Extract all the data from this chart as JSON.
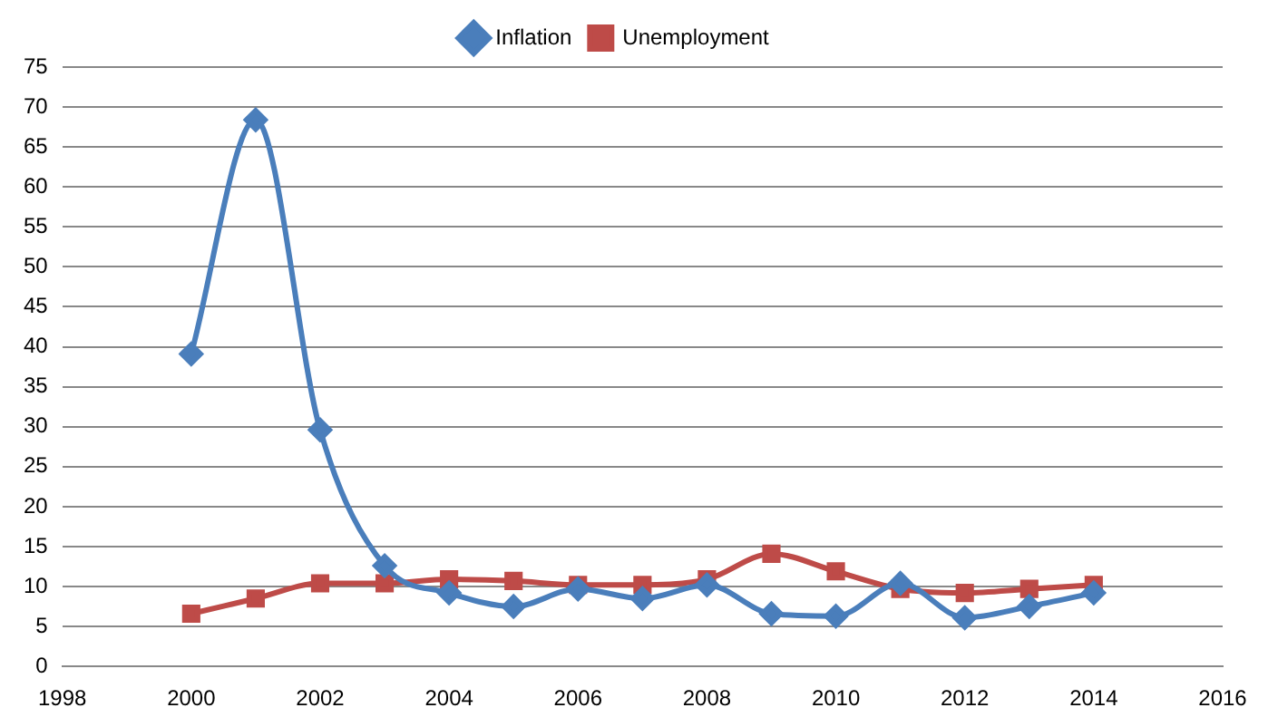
{
  "chart_data": {
    "type": "line",
    "x": [
      2000,
      2001,
      2002,
      2003,
      2004,
      2005,
      2006,
      2007,
      2008,
      2009,
      2010,
      2011,
      2012,
      2013,
      2014
    ],
    "series": [
      {
        "name": "Inflation",
        "color": "#4a7ebb",
        "marker": "diamond",
        "values": [
          39.1,
          68.4,
          29.6,
          12.6,
          9.2,
          7.5,
          9.7,
          8.5,
          10.2,
          6.6,
          6.3,
          10.4,
          6.1,
          7.5,
          9.2
        ]
      },
      {
        "name": "Unemployment",
        "color": "#be4b48",
        "marker": "square",
        "values": [
          6.6,
          8.5,
          10.4,
          10.4,
          10.9,
          10.7,
          10.2,
          10.2,
          10.9,
          14.1,
          11.9,
          9.7,
          9.2,
          9.7,
          10.2
        ]
      }
    ],
    "xlim": [
      1998,
      2016
    ],
    "xticks": [
      1998,
      2000,
      2002,
      2004,
      2006,
      2008,
      2010,
      2012,
      2014,
      2016
    ],
    "ylim": [
      0,
      75
    ],
    "yticks": [
      0,
      5,
      10,
      15,
      20,
      25,
      30,
      35,
      40,
      45,
      50,
      55,
      60,
      65,
      70,
      75
    ],
    "grid": "y",
    "legend": "top"
  }
}
